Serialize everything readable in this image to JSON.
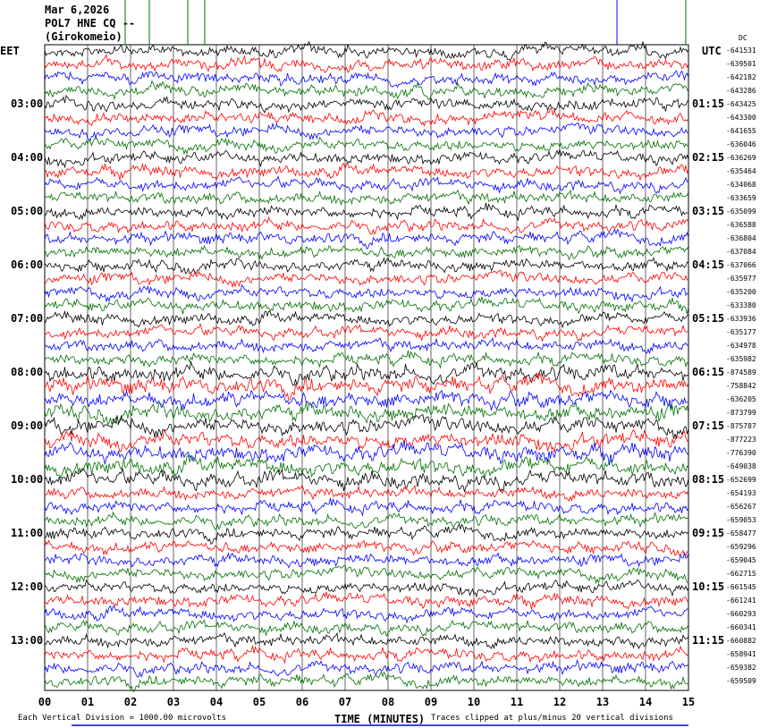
{
  "header": {
    "date": "Mar 6,2026",
    "station": "POL7 HNE CQ --",
    "location": "(Girokomeio)"
  },
  "left_tz": "EET",
  "right_tz": "UTC",
  "dc_label": "DC",
  "footer": {
    "scale": "Each Vertical Division = 1000.00 microvolts",
    "clip": "Traces clipped at plus/minus 20 vertical divisions"
  },
  "colors": [
    "#000000",
    "#ff0000",
    "#0000ff",
    "#007000"
  ],
  "chart_data": {
    "type": "line",
    "xlabel": "TIME (MINUTES)",
    "xlim": [
      0,
      15
    ],
    "x_ticks": [
      "00",
      "01",
      "02",
      "03",
      "04",
      "05",
      "06",
      "07",
      "08",
      "09",
      "10",
      "11",
      "12",
      "13",
      "14",
      "15"
    ],
    "left_hour_labels": [
      "03:00",
      "04:00",
      "05:00",
      "06:00",
      "07:00",
      "08:00",
      "09:00",
      "10:00",
      "11:00",
      "12:00",
      "13:00"
    ],
    "right_hour_labels": [
      "01:15",
      "02:15",
      "03:15",
      "04:15",
      "05:15",
      "06:15",
      "07:15",
      "08:15",
      "09:15",
      "10:15",
      "11:15"
    ],
    "trace_dc_offsets": [
      "-641531",
      "-639501",
      "-642182",
      "-643286",
      "-643425",
      "-643300",
      "-641655",
      "-636046",
      "-636269",
      "-635464",
      "-634068",
      "-633659",
      "-635099",
      "-636588",
      "-636804",
      "-637084",
      "-637066",
      "-635977",
      "-635200",
      "-633380",
      "-633936",
      "-635177",
      "-634978",
      "-635982",
      "-874589",
      "-758842",
      "-636205",
      "-873799",
      "-875787",
      "-877223",
      "-776390",
      "-649038",
      "-652699",
      "-654193",
      "-656267",
      "-659053",
      "-658477",
      "-659296",
      "-659045",
      "-662715",
      "-661545",
      "-661241",
      "-660293",
      "-660341",
      "-660882",
      "-658941",
      "-659382",
      "-659509"
    ]
  }
}
